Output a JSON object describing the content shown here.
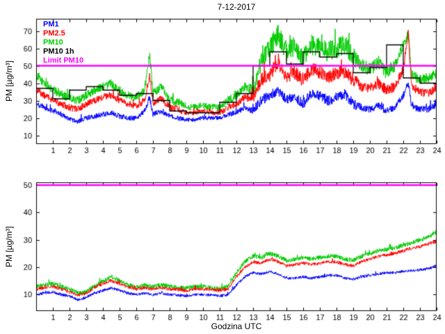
{
  "title": "7-12-2017",
  "axes": {
    "ylabel": "PM [µg/m³]",
    "xlabel": "Godzina UTC"
  },
  "legend": {
    "items": [
      {
        "label": "PM1",
        "color": "#0000ff"
      },
      {
        "label": "PM2.5",
        "color": "#ff0000"
      },
      {
        "label": "PM10",
        "color": "#00cc00"
      },
      {
        "label": "PM10 1h",
        "color": "#000000"
      },
      {
        "label": "Limit PM10",
        "color": "#ff00ff"
      }
    ]
  },
  "chart_data": [
    {
      "type": "line",
      "title": "7-12-2017",
      "ylabel": "PM [µg/m³]",
      "xlim": [
        0,
        24
      ],
      "ylim": [
        5,
        77
      ],
      "xticks": [
        1,
        2,
        3,
        4,
        5,
        6,
        7,
        8,
        9,
        10,
        11,
        12,
        13,
        14,
        15,
        16,
        17,
        18,
        19,
        20,
        21,
        22,
        23,
        24
      ],
      "yticks": [
        10,
        20,
        30,
        40,
        50,
        60,
        70
      ],
      "anchor_x": [
        0,
        0.5,
        1,
        1.5,
        2,
        2.5,
        3,
        3.5,
        4,
        4.5,
        5,
        5.5,
        6,
        6.5,
        6.8,
        7,
        7.5,
        8,
        8.5,
        9,
        9.5,
        10,
        10.5,
        11,
        11.5,
        12,
        12.5,
        13,
        13.3,
        13.5,
        14,
        14.5,
        15,
        15.5,
        16,
        16.5,
        17,
        17.5,
        18,
        18.5,
        19,
        19.5,
        20,
        20.5,
        21,
        21.5,
        22,
        22.3,
        22.5,
        23,
        23.5,
        24
      ],
      "series": [
        {
          "name": "PM10",
          "color": "#00cc00",
          "y": [
            44,
            40,
            36,
            34,
            31,
            30,
            33,
            36,
            38,
            40,
            36,
            33,
            32,
            36,
            57,
            34,
            38,
            30,
            29,
            27,
            26,
            27,
            26,
            26,
            30,
            33,
            38,
            36,
            45,
            55,
            60,
            68,
            58,
            60,
            55,
            62,
            60,
            58,
            60,
            62,
            55,
            50,
            48,
            52,
            46,
            50,
            62,
            68,
            45,
            42,
            43,
            46
          ],
          "noise": [
            2.5,
            2.5,
            2.5,
            2.5,
            2.5,
            2.5,
            2.5,
            2.5,
            2.5,
            2.5,
            2.5,
            2.5,
            2.5,
            2.5,
            3,
            2.5,
            2.5,
            2.5,
            2.5,
            2,
            2,
            2,
            2,
            2,
            2.5,
            2.5,
            2.5,
            4,
            5,
            6,
            6,
            6,
            6,
            6,
            6,
            6,
            6,
            6,
            6,
            6,
            6,
            4,
            4,
            4,
            4,
            4,
            3,
            3,
            3,
            3,
            3,
            3
          ]
        },
        {
          "name": "PM2.5",
          "color": "#ff0000",
          "y": [
            36,
            33,
            30,
            28,
            26,
            25,
            28,
            30,
            32,
            33,
            30,
            28,
            27,
            30,
            45,
            28,
            31,
            26,
            25,
            23,
            23,
            24,
            23,
            23,
            26,
            28,
            32,
            31,
            38,
            42,
            45,
            52,
            44,
            46,
            42,
            48,
            46,
            44,
            45,
            47,
            42,
            38,
            37,
            40,
            36,
            38,
            48,
            68,
            38,
            35,
            34,
            38
          ],
          "noise": [
            2,
            2,
            2,
            2,
            2,
            2,
            2,
            2,
            2,
            2,
            2,
            2,
            2,
            2,
            2.5,
            2,
            2,
            2,
            2,
            1.5,
            1.5,
            1.5,
            1.5,
            1.5,
            2,
            2,
            2,
            3,
            3.5,
            4,
            4,
            4,
            4,
            4,
            4,
            4,
            4,
            4,
            4,
            4,
            4,
            3,
            3,
            3,
            3,
            3,
            2.5,
            2.5,
            2.5,
            2.5,
            2.5,
            2.5
          ]
        },
        {
          "name": "PM1",
          "color": "#0000ff",
          "y": [
            28,
            26,
            24,
            22,
            19,
            18,
            20,
            21,
            22,
            23,
            21,
            20,
            20,
            24,
            32,
            22,
            24,
            21,
            20,
            19,
            19,
            20,
            20,
            20,
            22,
            23,
            26,
            24,
            28,
            30,
            33,
            36,
            30,
            32,
            28,
            34,
            33,
            30,
            32,
            34,
            28,
            26,
            25,
            27,
            24,
            26,
            33,
            40,
            27,
            25,
            25,
            28
          ],
          "noise": [
            1.5,
            1.5,
            1.5,
            1.5,
            1.5,
            1.5,
            1.5,
            1.5,
            1.5,
            1.5,
            1.5,
            1.5,
            1.5,
            1.5,
            2,
            1.5,
            1.5,
            1.5,
            1.5,
            1.2,
            1.2,
            1.2,
            1.2,
            1.2,
            1.5,
            1.5,
            1.5,
            2,
            2.5,
            3,
            3,
            3,
            3,
            3,
            3,
            3,
            3,
            3,
            3,
            3,
            3,
            2,
            2,
            2,
            2,
            2,
            2,
            2,
            2,
            2,
            2,
            2
          ]
        }
      ],
      "step_series": {
        "name": "PM10 1h",
        "color": "#000000",
        "hourly_values": [
          37,
          31,
          36,
          38,
          36,
          33,
          34,
          30,
          24,
          23,
          23,
          29,
          34,
          50,
          58,
          51,
          58,
          55,
          57,
          46,
          49,
          62,
          43,
          40
        ]
      },
      "limit_line": {
        "name": "Limit PM10",
        "value": 50,
        "color": "#ff00ff"
      }
    },
    {
      "type": "line",
      "ylabel": "PM [µg/m³]",
      "xlabel": "Godzina UTC",
      "xlim": [
        0,
        24
      ],
      "ylim": [
        4,
        51
      ],
      "xticks": [
        1,
        2,
        3,
        4,
        5,
        6,
        7,
        8,
        9,
        10,
        11,
        12,
        13,
        14,
        15,
        16,
        17,
        18,
        19,
        20,
        21,
        22,
        23,
        24
      ],
      "yticks": [
        10,
        20,
        30,
        40,
        50
      ],
      "anchor_x": [
        0,
        0.5,
        1,
        1.5,
        2,
        2.5,
        3,
        3.5,
        4,
        4.5,
        5,
        5.5,
        6,
        6.5,
        7,
        7.5,
        8,
        8.5,
        9,
        9.5,
        10,
        10.5,
        11,
        11.5,
        12,
        12.5,
        13,
        13.5,
        14,
        14.5,
        15,
        15.5,
        16,
        16.5,
        17,
        17.5,
        18,
        18.5,
        19,
        19.5,
        20,
        20.5,
        21,
        21.5,
        22,
        22.5,
        23,
        23.5,
        24
      ],
      "series": [
        {
          "name": "PM10",
          "color": "#00cc00",
          "y": [
            13,
            13.5,
            14,
            13,
            12,
            10.5,
            11,
            13,
            15,
            16.5,
            15,
            13.5,
            13,
            13.5,
            13,
            13.5,
            13,
            12.5,
            12.5,
            13,
            13,
            12.5,
            12,
            13,
            18,
            22,
            24,
            23.5,
            25,
            24,
            22.5,
            23,
            23.5,
            23,
            23.5,
            24,
            24,
            23,
            22.5,
            24,
            25,
            26,
            26.5,
            27,
            28,
            29,
            30,
            31,
            33
          ],
          "noise": 0.8
        },
        {
          "name": "PM2.5",
          "color": "#ff0000",
          "y": [
            12,
            12.5,
            13,
            12,
            11,
            9.8,
            10.5,
            12.5,
            14,
            15,
            14,
            12.8,
            12,
            12.5,
            12,
            12.5,
            12,
            11.8,
            11.5,
            12,
            12,
            11.8,
            11.5,
            12,
            16.5,
            20,
            22,
            21.5,
            23,
            22,
            20.5,
            21,
            21.5,
            21,
            21.5,
            22,
            22,
            21,
            20.5,
            22,
            23,
            24,
            24.5,
            25,
            26,
            27,
            27.5,
            28.5,
            29.5
          ],
          "noise": 0.6
        },
        {
          "name": "PM1",
          "color": "#0000ff",
          "y": [
            10,
            10.5,
            11,
            10,
            9.5,
            8,
            9,
            10.5,
            11.5,
            12.5,
            11.5,
            10.5,
            10,
            10.5,
            10,
            10.5,
            10,
            9.8,
            9.5,
            10,
            10,
            9.8,
            9.5,
            10,
            13.5,
            16.5,
            18,
            17.5,
            18.5,
            17.5,
            16,
            16,
            16.5,
            16,
            16.5,
            17,
            17,
            16,
            15.5,
            16.5,
            17,
            17.5,
            18,
            18,
            18.5,
            18.8,
            19,
            19.5,
            20.5
          ],
          "noise": 0.5
        }
      ],
      "limit_line": {
        "name": "Limit PM10",
        "value": 50,
        "color": "#ff00ff"
      }
    }
  ]
}
